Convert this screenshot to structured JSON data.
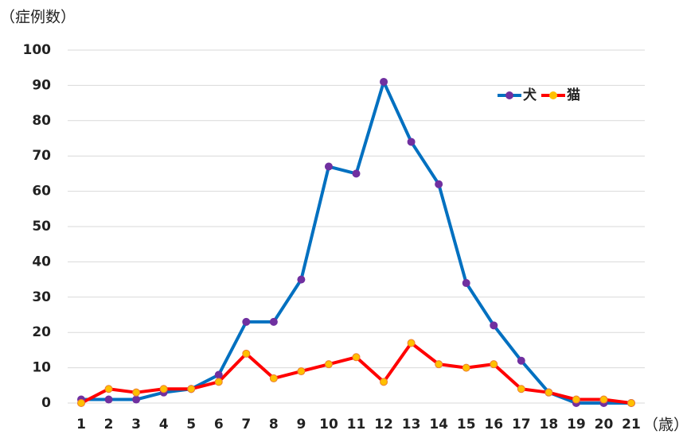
{
  "chart_data": {
    "type": "line",
    "y_label": "（症例数）",
    "x_label": "（歳）",
    "categories": [
      "1",
      "2",
      "3",
      "4",
      "5",
      "6",
      "7",
      "8",
      "9",
      "10",
      "11",
      "12",
      "13",
      "14",
      "15",
      "16",
      "17",
      "18",
      "19",
      "20",
      "21"
    ],
    "series": [
      {
        "name": "犬",
        "color": "#0070c0",
        "marker_color": "#7030a0",
        "values": [
          1,
          1,
          1,
          3,
          4,
          8,
          23,
          23,
          35,
          67,
          65,
          91,
          74,
          62,
          34,
          22,
          12,
          3,
          0,
          0,
          0
        ]
      },
      {
        "name": "猫",
        "color": "#ff0000",
        "marker_color": "#ffc000",
        "values": [
          0,
          4,
          3,
          4,
          4,
          6,
          14,
          7,
          9,
          11,
          13,
          6,
          17,
          11,
          10,
          11,
          4,
          3,
          1,
          1,
          0
        ]
      }
    ],
    "ylim": [
      0,
      100
    ],
    "yticks": [
      0,
      10,
      20,
      30,
      40,
      50,
      60,
      70,
      80,
      90,
      100
    ],
    "grid": true,
    "legend": "upper right"
  }
}
